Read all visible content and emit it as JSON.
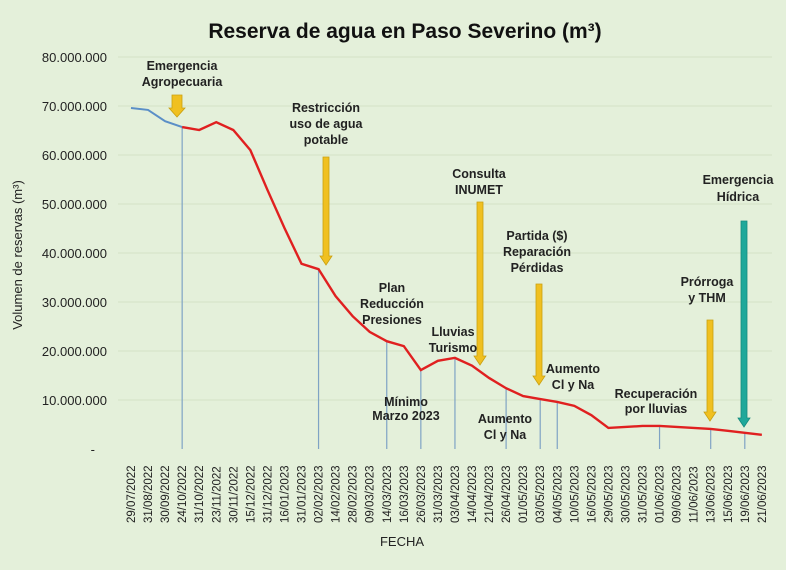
{
  "chart_data": {
    "type": "line",
    "title": "Reserva de agua en Paso Severino (m³)",
    "xlabel": "FECHA",
    "ylabel": "Volumen de reservas (m³)",
    "ylim": [
      0,
      80000000
    ],
    "yticks": [
      "-",
      "10.000.000",
      "20.000.000",
      "30.000.000",
      "40.000.000",
      "50.000.000",
      "60.000.000",
      "70.000.000",
      "80.000.000"
    ],
    "grid": true,
    "categories": [
      "29/07/2022",
      "31/08/2022",
      "30/09/2022",
      "24/10/2022",
      "31/10/2022",
      "23/11/2022",
      "30/11/2022",
      "15/12/2022",
      "31/12/2022",
      "16/01/2023",
      "31/01/2023",
      "02/02/2023",
      "14/02/2023",
      "28/02/2023",
      "09/03/2023",
      "14/03/2023",
      "16/03/2023",
      "26/03/2023",
      "31/03/2023",
      "03/04/2023",
      "14/04/2023",
      "21/04/2023",
      "26/04/2023",
      "01/05/2023",
      "03/05/2023",
      "04/05/2023",
      "10/05/2023",
      "16/05/2023",
      "29/05/2023",
      "30/05/2023",
      "31/05/2023",
      "01/06/2023",
      "09/06/2023",
      "11/06/2023",
      "13/06/2023",
      "15/06/2023",
      "19/06/2023",
      "21/06/2023"
    ],
    "values": [
      69600000,
      69200000,
      66900000,
      65700000,
      65100000,
      66700000,
      65100000,
      61000000,
      52900000,
      45100000,
      37800000,
      36700000,
      31200000,
      27100000,
      23900000,
      22000000,
      21000000,
      16100000,
      18000000,
      18600000,
      17000000,
      14500000,
      12400000,
      10800000,
      10200000,
      9600000,
      8800000,
      6900000,
      4300000,
      4500000,
      4700000,
      4700000,
      4500000,
      4300000,
      4100000,
      3700000,
      3300000,
      2900000
    ],
    "series_colors": {
      "before": "#5b8fc7",
      "after": "#e02020"
    },
    "color_change_index": 3,
    "marker_indices": [
      3,
      11,
      15,
      17,
      19,
      22,
      24,
      25,
      31,
      34,
      36
    ],
    "annotations": [
      {
        "lines": [
          "Emergencia",
          "Agropecuaria"
        ],
        "arrow": "yellow"
      },
      {
        "lines": [
          "Restricción",
          "uso de agua",
          "potable"
        ],
        "arrow": "yellow"
      },
      {
        "lines": [
          "Plan",
          "Reducción",
          "Presiones"
        ]
      },
      {
        "lines": [
          "Mínimo",
          "Marzo 2023"
        ]
      },
      {
        "lines": [
          "Lluvias",
          "Turismo"
        ]
      },
      {
        "lines": [
          "Consulta",
          "INUMET"
        ],
        "arrow": "yellow"
      },
      {
        "lines": [
          "Aumento",
          "Cl y Na"
        ]
      },
      {
        "lines": [
          "Partida ($)",
          "Reparación",
          "Pérdidas"
        ],
        "arrow": "yellow"
      },
      {
        "lines": [
          "Aumento",
          "Cl y Na"
        ]
      },
      {
        "lines": [
          "Recuperación",
          "por lluvias"
        ]
      },
      {
        "lines": [
          "Prórroga",
          "y THM"
        ],
        "arrow": "yellow"
      },
      {
        "lines": [
          "Emergencia",
          "Hídrica"
        ],
        "arrow": "teal"
      }
    ],
    "arrow_colors": {
      "yellow": "#f0c020",
      "teal": "#1fa89a"
    }
  }
}
